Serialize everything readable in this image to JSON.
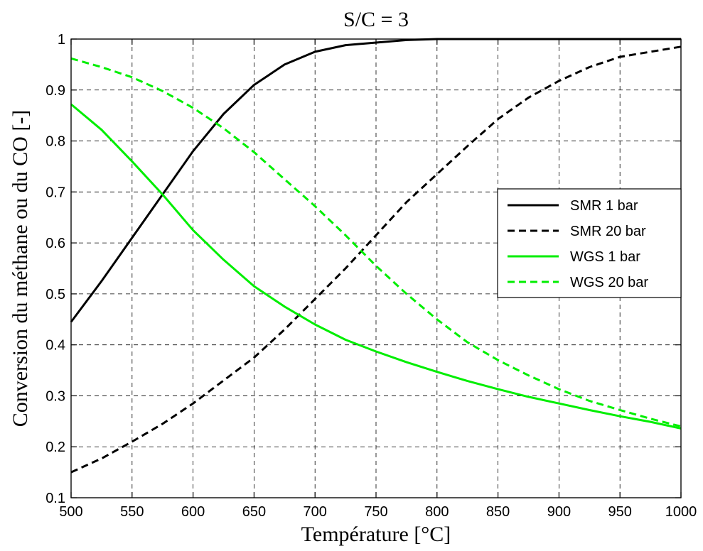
{
  "chart_data": {
    "type": "line",
    "title": "S/C = 3",
    "xlabel": "Température [°C]",
    "ylabel": "Conversion du méthane ou du CO [-]",
    "xlim": [
      500,
      1000
    ],
    "ylim": [
      0.1,
      1
    ],
    "grid": true,
    "legend_position": "center-right",
    "x_ticks": [
      "500",
      "550",
      "600",
      "650",
      "700",
      "750",
      "800",
      "850",
      "900",
      "950",
      "1000"
    ],
    "y_ticks": [
      "0.1",
      "0.2",
      "0.3",
      "0.4",
      "0.5",
      "0.6",
      "0.7",
      "0.8",
      "0.9",
      "1"
    ],
    "x": [
      500,
      525,
      550,
      575,
      600,
      625,
      650,
      675,
      700,
      725,
      750,
      775,
      800,
      825,
      850,
      875,
      900,
      925,
      950,
      975,
      1000
    ],
    "series": [
      {
        "name": "SMR 1 bar",
        "color": "#000000",
        "dash": "solid",
        "values": [
          0.445,
          0.525,
          0.61,
          0.695,
          0.78,
          0.853,
          0.91,
          0.95,
          0.975,
          0.988,
          0.993,
          0.998,
          1.0,
          1.0,
          1.0,
          1.0,
          1.0,
          1.0,
          1.0,
          1.0,
          1.0
        ]
      },
      {
        "name": "SMR 20 bar",
        "color": "#000000",
        "dash": "dashed",
        "values": [
          0.15,
          0.177,
          0.21,
          0.245,
          0.285,
          0.33,
          0.375,
          0.43,
          0.49,
          0.55,
          0.615,
          0.68,
          0.735,
          0.79,
          0.843,
          0.885,
          0.918,
          0.945,
          0.965,
          0.975,
          0.985
        ]
      },
      {
        "name": "WGS 1 bar",
        "color": "#00ee00",
        "dash": "solid",
        "values": [
          0.872,
          0.822,
          0.76,
          0.695,
          0.625,
          0.567,
          0.515,
          0.475,
          0.44,
          0.41,
          0.387,
          0.366,
          0.347,
          0.329,
          0.313,
          0.298,
          0.285,
          0.272,
          0.26,
          0.249,
          0.236
        ]
      },
      {
        "name": "WGS 20 bar",
        "color": "#00ee00",
        "dash": "dashed",
        "values": [
          0.962,
          0.945,
          0.925,
          0.898,
          0.865,
          0.825,
          0.778,
          0.725,
          0.672,
          0.615,
          0.555,
          0.5,
          0.45,
          0.405,
          0.37,
          0.34,
          0.313,
          0.29,
          0.272,
          0.255,
          0.24
        ]
      }
    ]
  }
}
